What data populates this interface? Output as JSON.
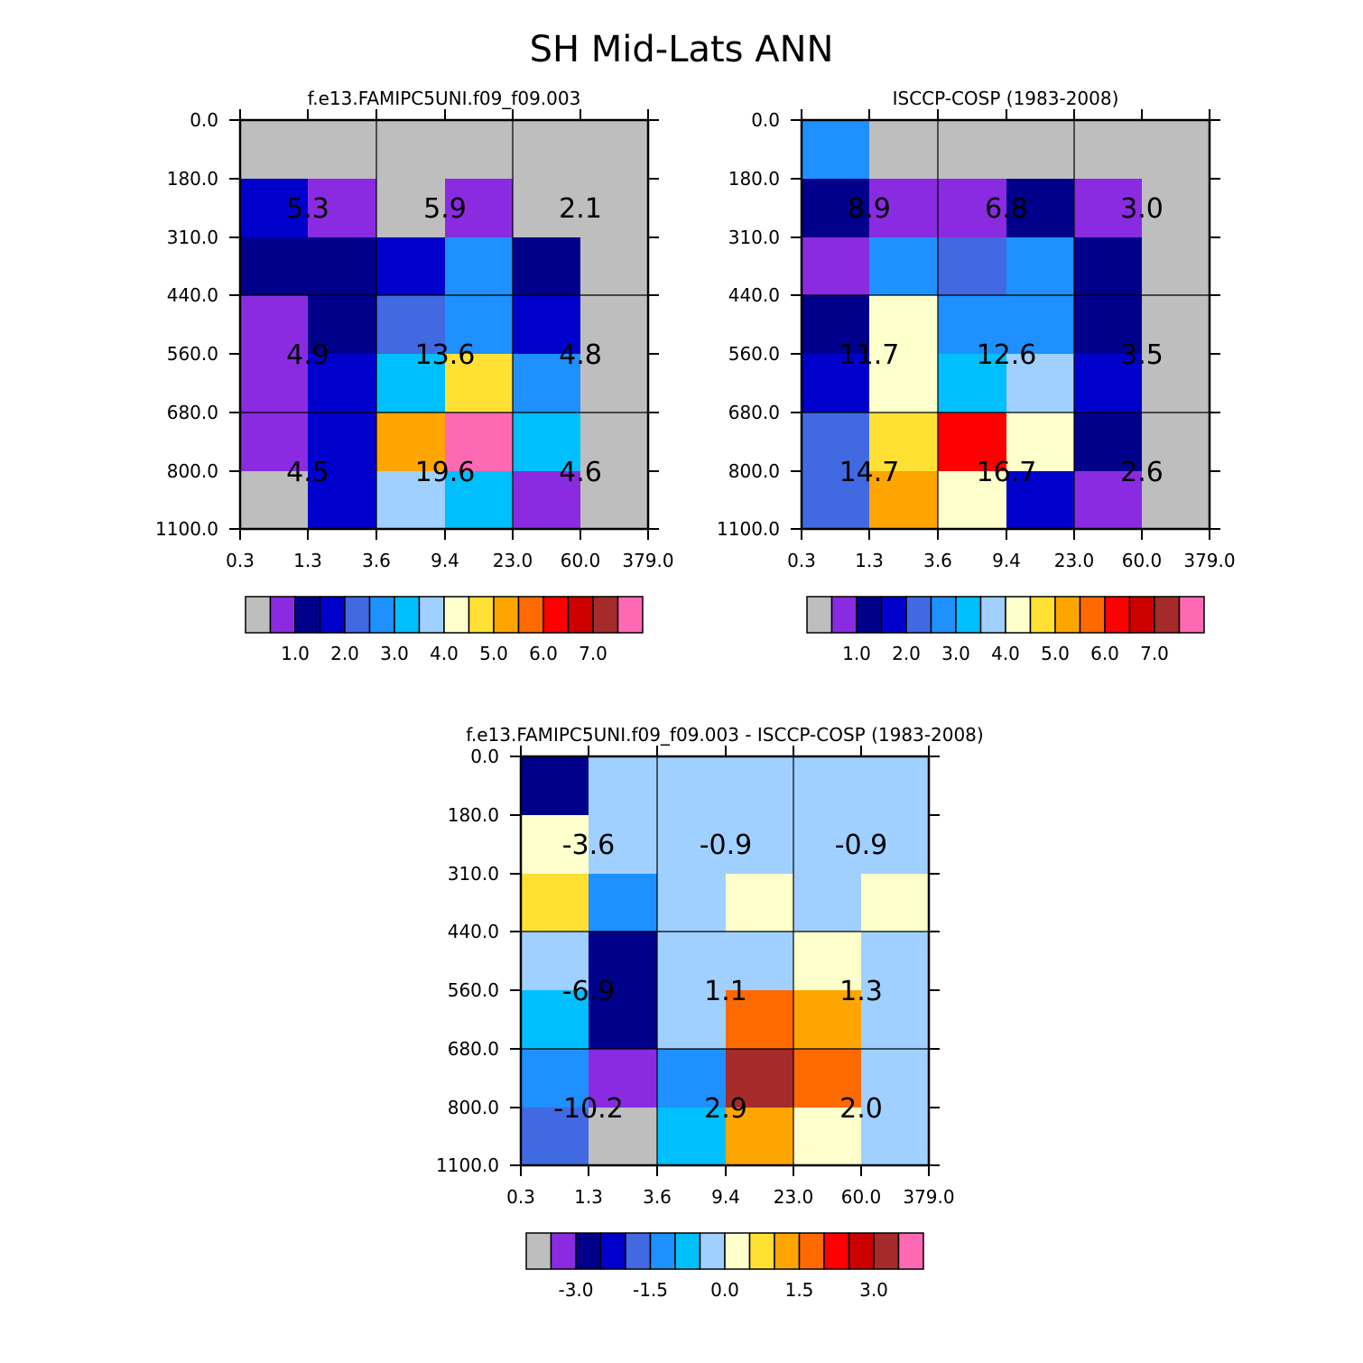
{
  "page_title": "SH Mid-Lats ANN",
  "chart_data": [
    {
      "type": "heatmap",
      "title": "f.e13.FAMIPC5UNI.f09_f09.003",
      "x_ticks": [
        "0.3",
        "1.3",
        "3.6",
        "9.4",
        "23.0",
        "60.0",
        "379.0"
      ],
      "y_ticks": [
        "0.0",
        "180.0",
        "310.0",
        "440.0",
        "560.0",
        "680.0",
        "800.0",
        "1100.0"
      ],
      "cells": [
        [
          0,
          0,
          0,
          0,
          0,
          0
        ],
        [
          3,
          1,
          0,
          1,
          0,
          0
        ],
        [
          2,
          2,
          3,
          5,
          2,
          0
        ],
        [
          1,
          2,
          4,
          5,
          3,
          0
        ],
        [
          1,
          3,
          6,
          9,
          5,
          0
        ],
        [
          1,
          3,
          10,
          15,
          6,
          0
        ],
        [
          0,
          3,
          7,
          6,
          1,
          0
        ]
      ],
      "annotations": [
        [
          "5.3",
          "5.9",
          "2.1"
        ],
        [
          "4.9",
          "13.6",
          "4.8"
        ],
        [
          "4.5",
          "19.6",
          "4.6"
        ]
      ],
      "colorbar": {
        "labels": [
          "1.0",
          "2.0",
          "3.0",
          "4.0",
          "5.0",
          "6.0",
          "7.0"
        ]
      }
    },
    {
      "type": "heatmap",
      "title": "ISCCP-COSP (1983-2008)",
      "x_ticks": [
        "0.3",
        "1.3",
        "3.6",
        "9.4",
        "23.0",
        "60.0",
        "379.0"
      ],
      "y_ticks": [
        "0.0",
        "180.0",
        "310.0",
        "440.0",
        "560.0",
        "680.0",
        "800.0",
        "1100.0"
      ],
      "cells": [
        [
          5,
          0,
          0,
          0,
          0,
          0
        ],
        [
          2,
          1,
          1,
          2,
          1,
          0
        ],
        [
          1,
          5,
          4,
          5,
          2,
          0
        ],
        [
          2,
          8,
          5,
          5,
          2,
          0
        ],
        [
          3,
          8,
          6,
          7,
          3,
          0
        ],
        [
          4,
          9,
          12,
          8,
          2,
          0
        ],
        [
          4,
          10,
          8,
          3,
          1,
          0
        ]
      ],
      "annotations": [
        [
          "8.9",
          "6.8",
          "3.0"
        ],
        [
          "11.7",
          "12.6",
          "3.5"
        ],
        [
          "14.7",
          "16.7",
          "2.6"
        ]
      ],
      "colorbar": {
        "labels": [
          "1.0",
          "2.0",
          "3.0",
          "4.0",
          "5.0",
          "6.0",
          "7.0"
        ]
      }
    },
    {
      "type": "heatmap",
      "title": "f.e13.FAMIPC5UNI.f09_f09.003 - ISCCP-COSP (1983-2008)",
      "x_ticks": [
        "0.3",
        "1.3",
        "3.6",
        "9.4",
        "23.0",
        "60.0",
        "379.0"
      ],
      "y_ticks": [
        "0.0",
        "180.0",
        "310.0",
        "440.0",
        "560.0",
        "680.0",
        "800.0",
        "1100.0"
      ],
      "cells": [
        [
          2,
          7,
          7,
          7,
          7,
          7
        ],
        [
          8,
          7,
          7,
          7,
          7,
          7
        ],
        [
          9,
          5,
          7,
          8,
          7,
          8
        ],
        [
          7,
          2,
          7,
          7,
          8,
          7
        ],
        [
          6,
          2,
          7,
          11,
          10,
          7
        ],
        [
          5,
          1,
          5,
          14,
          11,
          7
        ],
        [
          4,
          0,
          6,
          10,
          8,
          7
        ]
      ],
      "annotations": [
        [
          "-3.6",
          "-0.9",
          "-0.9"
        ],
        [
          "-6.9",
          "1.1",
          "1.3"
        ],
        [
          "-10.2",
          "2.9",
          "2.0"
        ]
      ],
      "colorbar": {
        "labels": [
          "-3.0",
          "-1.5",
          "0.0",
          "1.5",
          "3.0"
        ]
      }
    }
  ],
  "palette": [
    "#bebebe",
    "#8a2be2",
    "#00008b",
    "#0000cd",
    "#4169e1",
    "#1e90ff",
    "#00bfff",
    "#a0d0ff",
    "#ffffcc",
    "#ffe033",
    "#ffa500",
    "#ff6a00",
    "#ff0000",
    "#cd0000",
    "#a52a2a",
    "#ff69b4"
  ]
}
